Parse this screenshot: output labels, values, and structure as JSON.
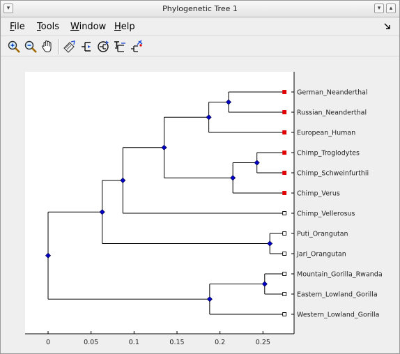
{
  "window": {
    "title": "Phylogenetic Tree 1"
  },
  "menu": {
    "items": [
      {
        "key": "F",
        "rest": "ile"
      },
      {
        "key": "T",
        "rest": "ools"
      },
      {
        "key": "W",
        "rest": "indow"
      },
      {
        "key": "H",
        "rest": "elp"
      }
    ]
  },
  "toolbar": {
    "buttons": [
      {
        "icon": "zoom-in-icon"
      },
      {
        "icon": "zoom-out-icon"
      },
      {
        "icon": "pan-hand-icon"
      },
      {
        "icon": "inspect-icon"
      },
      {
        "icon": "collapse-expand-icon"
      },
      {
        "icon": "rotate-branch-icon"
      },
      {
        "icon": "rename-icon"
      },
      {
        "icon": "prune-icon"
      }
    ]
  },
  "chart_data": {
    "type": "dendrogram",
    "xlim": [
      -0.027,
      0.28
    ],
    "xticks": [
      "0",
      "0.05",
      "0.1",
      "0.15",
      "0.2",
      "0.25"
    ],
    "xtick_values": [
      0,
      0.05,
      0.1,
      0.15,
      0.2,
      0.25
    ],
    "leaves": [
      {
        "name": "German_Neanderthal",
        "x": 0.275,
        "color": "#e00000",
        "filled": true
      },
      {
        "name": "Russian_Neanderthal",
        "x": 0.275,
        "color": "#e00000",
        "filled": true
      },
      {
        "name": "European_Human",
        "x": 0.275,
        "color": "#e00000",
        "filled": true
      },
      {
        "name": "Chimp_Troglodytes",
        "x": 0.275,
        "color": "#e00000",
        "filled": true
      },
      {
        "name": "Chimp_Schweinfurthii",
        "x": 0.275,
        "color": "#e00000",
        "filled": true
      },
      {
        "name": "Chimp_Verus",
        "x": 0.275,
        "color": "#e00000",
        "filled": true
      },
      {
        "name": "Chimp_Vellerosus",
        "x": 0.275,
        "color": "#ffffff",
        "filled": false
      },
      {
        "name": "Puti_Orangutan",
        "x": 0.275,
        "color": "#ffffff",
        "filled": false
      },
      {
        "name": "Jari_Orangutan",
        "x": 0.275,
        "color": "#ffffff",
        "filled": false
      },
      {
        "name": "Mountain_Gorilla_Rwanda",
        "x": 0.275,
        "color": "#ffffff",
        "filled": false
      },
      {
        "name": "Eastern_Lowland_Gorilla",
        "x": 0.275,
        "color": "#ffffff",
        "filled": false
      },
      {
        "name": "Western_Lowland_Gorilla",
        "x": 0.275,
        "color": "#ffffff",
        "filled": false
      }
    ],
    "internal_nodes": [
      {
        "id": "n_neand",
        "x": 0.21,
        "children": [
          0,
          1
        ]
      },
      {
        "id": "n_human",
        "x": 0.187,
        "children": [
          "n_neand",
          2
        ]
      },
      {
        "id": "n_tro_sch",
        "x": 0.243,
        "children": [
          3,
          4
        ]
      },
      {
        "id": "n_chimp3",
        "x": 0.215,
        "children": [
          "n_tro_sch",
          5
        ]
      },
      {
        "id": "n_hom_chimp",
        "x": 0.135,
        "children": [
          "n_human",
          "n_chimp3"
        ]
      },
      {
        "id": "n_vell",
        "x": 0.087,
        "children": [
          "n_hom_chimp",
          6
        ]
      },
      {
        "id": "n_orang",
        "x": 0.258,
        "children": [
          7,
          8
        ]
      },
      {
        "id": "n_great",
        "x": 0.063,
        "children": [
          "n_vell",
          "n_orang"
        ]
      },
      {
        "id": "n_gor2",
        "x": 0.252,
        "children": [
          9,
          10
        ]
      },
      {
        "id": "n_gor3",
        "x": 0.188,
        "children": [
          "n_gor2",
          11
        ]
      },
      {
        "id": "n_root",
        "x": 0.0,
        "children": [
          "n_great",
          "n_gor3"
        ]
      }
    ],
    "node_color": "#0000c8"
  }
}
